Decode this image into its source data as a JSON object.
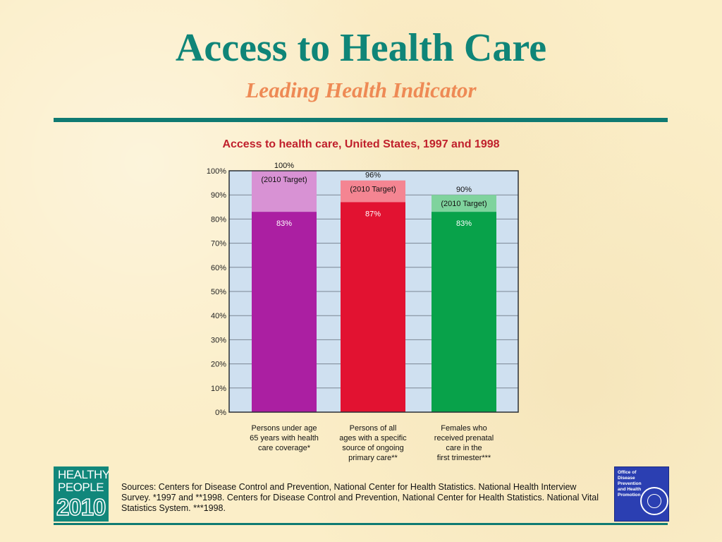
{
  "slide": {
    "title": "Access to Health Care",
    "subtitle": "Leading Health Indicator",
    "sources": "Sources: Centers for Disease Control and Prevention, National Center for Health Statistics. National Health Interview Survey. *1997 and **1998. Centers for Disease Control and Prevention, National Center for Health Statistics. National Vital Statistics System. ***1998.",
    "logo_left": {
      "line1": "HEALTHY",
      "line2": "PEOPLE",
      "line3": "2010"
    },
    "logo_right": {
      "text": "Office of Disease Prevention and Health Promotion"
    }
  },
  "chart_data": {
    "type": "bar",
    "title": "Access to health care, United States, 1997 and 1998",
    "xlabel": "",
    "ylabel": "",
    "ylim": [
      0,
      100
    ],
    "yticks": [
      "0%",
      "10%",
      "20%",
      "30%",
      "40%",
      "50%",
      "60%",
      "70%",
      "80%",
      "90%",
      "100%"
    ],
    "grid": true,
    "categories": [
      [
        "Persons under age",
        "65 years with health",
        "care coverage*"
      ],
      [
        "Persons of all",
        "ages with a specific",
        "source of ongoing",
        "primary care**"
      ],
      [
        "Females who",
        "received prenatal",
        "care in the",
        "first trimester***"
      ]
    ],
    "series": [
      {
        "values": [
          83,
          87,
          83
        ],
        "labels": [
          "83%",
          "87%",
          "83%"
        ]
      },
      {
        "values": [
          100,
          96,
          90
        ],
        "labels": [
          "100%",
          "96%",
          "90%"
        ],
        "annotation": "(2010 Target)"
      }
    ],
    "colors": {
      "actual": [
        "#ab1fa2",
        "#e21231",
        "#08a24a"
      ],
      "target": [
        "#d892d4",
        "#f48592",
        "#7fd39d"
      ],
      "plot_bg": "#cfe0f0",
      "grid": "#7b8694"
    }
  }
}
